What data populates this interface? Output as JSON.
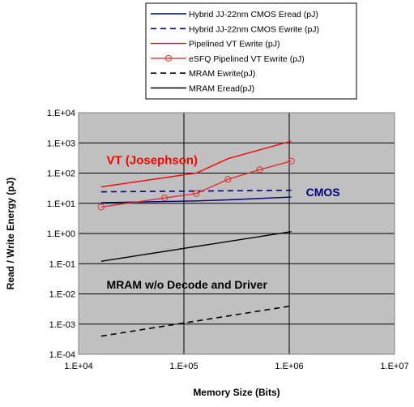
{
  "chart_data": {
    "type": "line",
    "title": "",
    "xlabel": "Memory Size (Bits)",
    "ylabel": "Read / Write Energy (pJ)",
    "x_scale": "log",
    "y_scale": "log",
    "xlim": [
      10000,
      10000000
    ],
    "ylim": [
      0.0001,
      10000
    ],
    "x_ticks": [
      "1.E+04",
      "1.E+05",
      "1.E+06",
      "1.E+07"
    ],
    "y_ticks": [
      "1.E-04",
      "1.E-03",
      "1.E-02",
      "1.E-01",
      "1.E+00",
      "1.E+01",
      "1.E+02",
      "1.E+03",
      "1.E+04"
    ],
    "grid": true,
    "plot_background": "#c0c0c0",
    "legend_position": "top-center",
    "series": [
      {
        "name": "Hybrid JJ-22nm CMOS Eread (pJ)",
        "color": "#000080",
        "dash": "solid",
        "marker": "none",
        "x": [
          16384,
          131072,
          262144,
          1048576
        ],
        "y": [
          10.5,
          12,
          13,
          16
        ]
      },
      {
        "name": "Hybrid JJ-22nm CMOS Ewrite (pJ)",
        "color": "#000080",
        "dash": "dashed",
        "marker": "none",
        "x": [
          16384,
          1048576
        ],
        "y": [
          24,
          27
        ]
      },
      {
        "name": "Pipelined VT Ewrite (pJ)",
        "color": "#ff0000",
        "dash": "solid",
        "marker": "none",
        "x": [
          16384,
          131072,
          262144,
          1048576
        ],
        "y": [
          35,
          100,
          300,
          1150
        ]
      },
      {
        "name": "eSFQ Pipelined VT Ewrite (pJ)",
        "color": "#e03030",
        "dash": "solid",
        "marker": "circle",
        "x": [
          16384,
          65536,
          131072,
          262144,
          524288,
          1048576
        ],
        "y": [
          7.5,
          15,
          21,
          62,
          130,
          250
        ]
      },
      {
        "name": "MRAM Ewrite(pJ)",
        "color": "#000000",
        "dash": "dashed",
        "marker": "none",
        "x": [
          16384,
          1048576
        ],
        "y": [
          0.0004,
          0.004
        ]
      },
      {
        "name": "MRAM Eread(pJ)",
        "color": "#000000",
        "dash": "solid",
        "marker": "none",
        "x": [
          16384,
          1048576
        ],
        "y": [
          0.12,
          1.15
        ]
      }
    ],
    "annotations": [
      {
        "text": "VT (Josephson)",
        "x": 16000,
        "y": 200,
        "color": "#ff0000"
      },
      {
        "text": "CMOS",
        "x": 1250000,
        "y": 17,
        "color": "#000080"
      },
      {
        "text": "MRAM w/o Decode and Driver",
        "x": 16000,
        "y": 0.015,
        "color": "#000000"
      }
    ]
  }
}
